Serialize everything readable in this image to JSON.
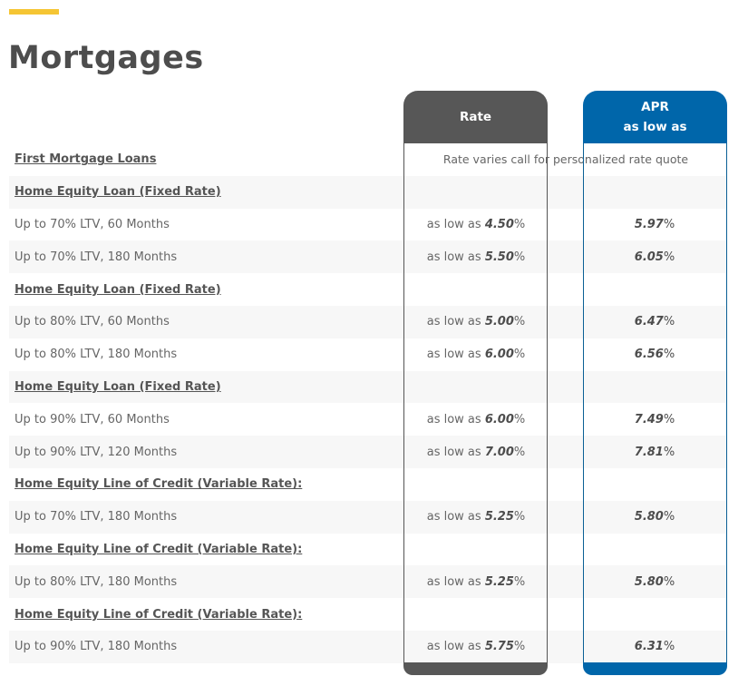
{
  "page": {
    "title": "Mortgages",
    "accent_color": "#f5c534"
  },
  "columns": {
    "rate": {
      "label": "Rate",
      "color": "#575757"
    },
    "apr": {
      "label_line1": "APR",
      "label_line2": "as low as",
      "color": "#0066aa"
    }
  },
  "rows": [
    {
      "type": "section",
      "label": "First Mortgage Loans",
      "note": "Rate varies call for personalized rate quote"
    },
    {
      "type": "section",
      "label": "Home Equity Loan (Fixed Rate)"
    },
    {
      "type": "item",
      "label": "Up to 70% LTV, 60 Months",
      "rate_prefix": "as low as",
      "rate": "4.50",
      "apr": "5.97"
    },
    {
      "type": "item",
      "label": "Up to 70% LTV, 180 Months",
      "rate_prefix": "as low as",
      "rate": "5.50",
      "apr": "6.05"
    },
    {
      "type": "section",
      "label": "Home Equity Loan (Fixed Rate)"
    },
    {
      "type": "item",
      "label": "Up to 80% LTV, 60 Months",
      "rate_prefix": "as low as",
      "rate": "5.00",
      "apr": "6.47"
    },
    {
      "type": "item",
      "label": "Up to 80% LTV, 180 Months",
      "rate_prefix": "as low as",
      "rate": "6.00",
      "apr": "6.56"
    },
    {
      "type": "section",
      "label": "Home Equity Loan (Fixed Rate)"
    },
    {
      "type": "item",
      "label": "Up to 90% LTV, 60 Months",
      "rate_prefix": "as low as",
      "rate": "6.00",
      "apr": "7.49"
    },
    {
      "type": "item",
      "label": "Up to 90% LTV, 120 Months",
      "rate_prefix": "as low as",
      "rate": "7.00",
      "apr": "7.81"
    },
    {
      "type": "section",
      "label": "Home Equity Line of Credit (Variable Rate):"
    },
    {
      "type": "item",
      "label": "Up to 70% LTV, 180 Months",
      "rate_prefix": "as low as",
      "rate": "5.25",
      "apr": "5.80"
    },
    {
      "type": "section",
      "label": "Home Equity Line of Credit (Variable Rate):"
    },
    {
      "type": "item",
      "label": "Up to 80% LTV, 180 Months",
      "rate_prefix": "as low as",
      "rate": "5.25",
      "apr": "5.80"
    },
    {
      "type": "section",
      "label": "Home Equity Line of Credit (Variable Rate):"
    },
    {
      "type": "item",
      "label": "Up to 90% LTV, 180 Months",
      "rate_prefix": "as low as",
      "rate": "5.75",
      "apr": "6.31"
    }
  ],
  "percent_sign": "%"
}
